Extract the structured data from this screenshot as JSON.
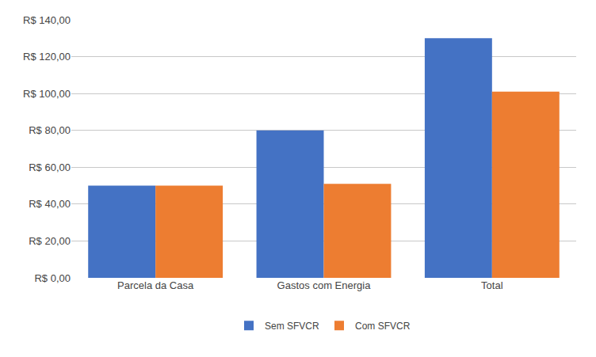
{
  "chart_data": {
    "type": "bar",
    "categories": [
      "Parcela da Casa",
      "Gastos com Energia",
      "Total"
    ],
    "series": [
      {
        "name": "Sem SFVCR",
        "color": "#4472C4",
        "values": [
          50,
          80,
          130
        ]
      },
      {
        "name": "Com SFVCR",
        "color": "#ED7D31",
        "values": [
          50,
          51,
          101
        ]
      }
    ],
    "ylim": [
      0,
      140
    ],
    "yticks": [
      {
        "value": 0,
        "label": "R$ 0,00"
      },
      {
        "value": 20,
        "label": "R$ 20,00"
      },
      {
        "value": 40,
        "label": "R$ 40,00"
      },
      {
        "value": 60,
        "label": "R$ 60,00"
      },
      {
        "value": 80,
        "label": "R$ 80,00"
      },
      {
        "value": 100,
        "label": "R$ 100,00"
      },
      {
        "value": 120,
        "label": "R$ 120,00"
      },
      {
        "value": 140,
        "label": "R$ 140,00"
      }
    ],
    "grid": true,
    "legend": "bottom"
  }
}
